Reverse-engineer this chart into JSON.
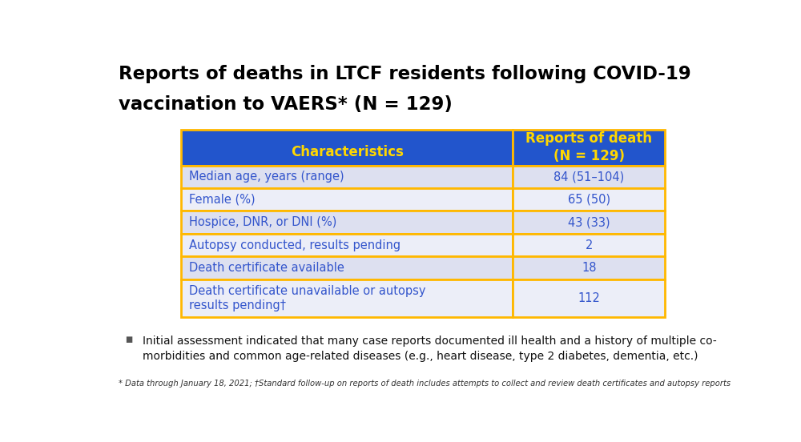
{
  "title_line1": "Reports of deaths in LTCF residents following COVID-19",
  "title_line2": "vaccination to VAERS* (N = 129)",
  "header_col1": "Characteristics",
  "header_col2": "Reports of death\n(N = 129)",
  "rows": [
    [
      "Median age, years (range)",
      "84 (51–104)"
    ],
    [
      "Female (%)",
      "65 (50)"
    ],
    [
      "Hospice, DNR, or DNI (%)",
      "43 (33)"
    ],
    [
      "Autopsy conducted, results pending",
      "2"
    ],
    [
      "Death certificate available",
      "18"
    ],
    [
      "Death certificate unavailable or autopsy\nresults pending†",
      "112"
    ]
  ],
  "row_bg_col1": [
    "#dde0f0",
    "#eceef8",
    "#dde0f0",
    "#eceef8",
    "#dde0f0",
    "#eceef8"
  ],
  "row_bg_col2": [
    "#dde0f0",
    "#eceef8",
    "#dde0f0",
    "#eceef8",
    "#dde0f0",
    "#eceef8"
  ],
  "header_bg": "#2255cc",
  "header_text_color": "#FFD700",
  "data_text_color": "#3355cc",
  "title_color": "#000000",
  "border_color": "#FFB800",
  "bullet_text_line1": "Initial assessment indicated that many case reports documented ill health and a history of multiple co-",
  "bullet_text_line2": "morbidities and common age-related diseases (e.g., heart disease, type 2 diabetes, dementia, etc.)",
  "footnote": "* Data through January 18, 2021; †Standard follow-up on reports of death includes attempts to collect and review death certificates and autopsy reports",
  "bg_color": "#ffffff"
}
